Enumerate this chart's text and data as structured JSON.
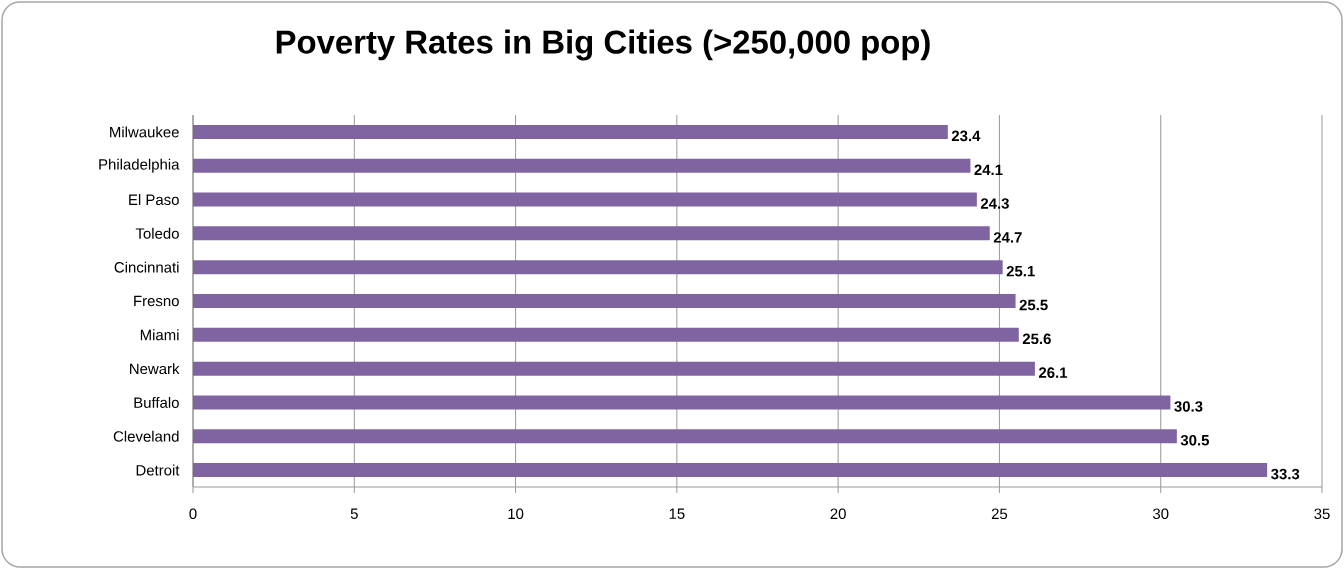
{
  "chart_data": {
    "type": "bar",
    "orientation": "horizontal",
    "title": "Poverty Rates in Big Cities (>250,000 pop)",
    "categories": [
      "Milwaukee",
      "Philadelphia",
      "El Paso",
      "Toledo",
      "Cincinnati",
      "Fresno",
      "Miami",
      "Newark",
      "Buffalo",
      "Cleveland",
      "Detroit"
    ],
    "values": [
      23.4,
      24.1,
      24.3,
      24.7,
      25.1,
      25.5,
      25.6,
      26.1,
      30.3,
      30.5,
      33.3
    ],
    "color": "#8064a2",
    "xlim": [
      0,
      35
    ],
    "xticks": [
      0,
      5,
      10,
      15,
      20,
      25,
      30,
      35
    ],
    "grid": "x",
    "data_labels": true
  }
}
